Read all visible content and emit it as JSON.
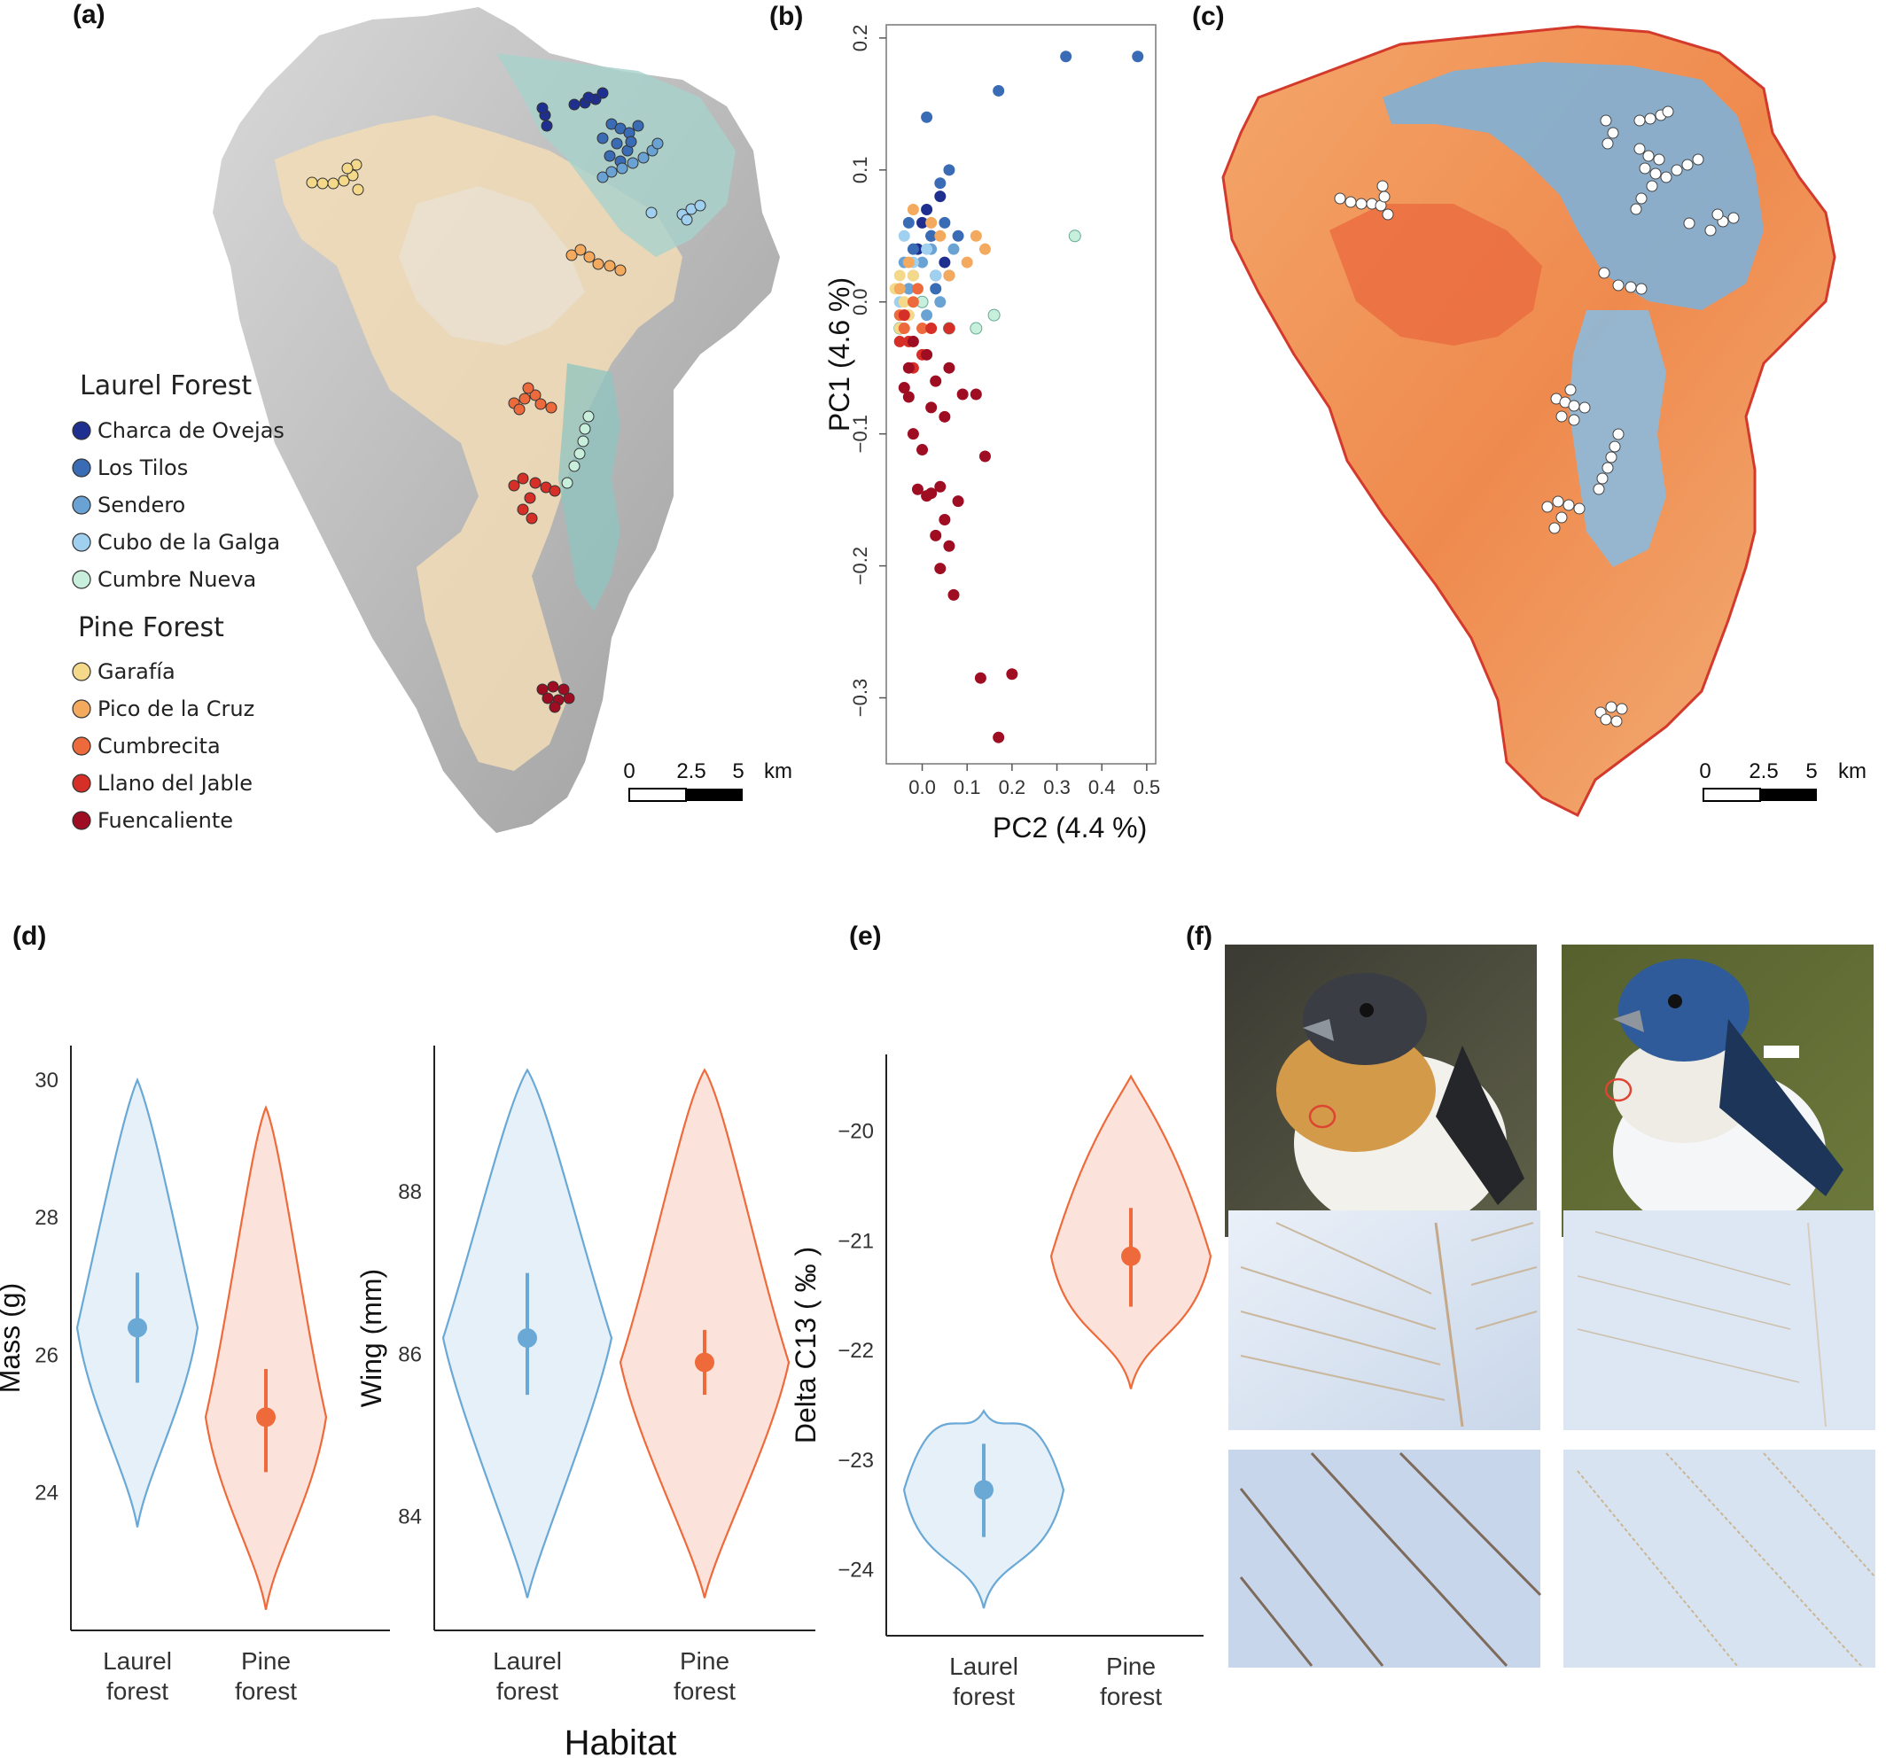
{
  "panels": {
    "a": "(a)",
    "b": "(b)",
    "c": "(c)",
    "d": "(d)",
    "e": "(e)",
    "f": "(f)"
  },
  "legend": {
    "laurel_title": "Laurel Forest",
    "pine_title": "Pine Forest",
    "laurel_items": [
      {
        "label": "Charca de Ovejas",
        "color": "#1f2f8f"
      },
      {
        "label": "Los Tilos",
        "color": "#3a6bb5"
      },
      {
        "label": "Sendero",
        "color": "#6aa3d3"
      },
      {
        "label": "Cubo de la Galga",
        "color": "#9fd0f0"
      },
      {
        "label": "Cumbre Nueva",
        "color": "#c8eedc"
      }
    ],
    "pine_items": [
      {
        "label": "Garafía",
        "color": "#f5d98a"
      },
      {
        "label": "Pico de la Cruz",
        "color": "#f3a95e"
      },
      {
        "label": "Cumbrecita",
        "color": "#ec6a3c"
      },
      {
        "label": "Llano del Jable",
        "color": "#d52f27"
      },
      {
        "label": "Fuencaliente",
        "color": "#9e0d22"
      }
    ]
  },
  "scale_bar": {
    "t0": "0",
    "t1": "2.5",
    "t2": "5",
    "unit": "km"
  },
  "colors": {
    "laurel": "#6aa8d6",
    "laurel_fill": "#e5f0f9",
    "pine": "#ef6a3a",
    "pine_fill": "#fbe3dc",
    "map_grey": "#bdbdbd",
    "laurel_zone": "#a8d2cc",
    "pine_zone": "#f1dcb6"
  },
  "chart_data": [
    {
      "type": "scatter",
      "id": "b",
      "xlabel": "PC2 (4.4 %)",
      "ylabel": "PC1 (4.6 %)",
      "xlim": [
        -0.08,
        0.52
      ],
      "ylim": [
        -0.35,
        0.21
      ],
      "xticks": [
        "0.0",
        "0.1",
        "0.2",
        "0.3",
        "0.4",
        "0.5"
      ],
      "yticks": [
        "0.2",
        "0.1",
        "0.0",
        "−0.1",
        "−0.2",
        "−0.3"
      ],
      "series": [
        {
          "name": "Charca de Ovejas",
          "color": "#1f2f8f",
          "points": [
            [
              0.0,
              0.06
            ],
            [
              0.02,
              0.05
            ],
            [
              0.05,
              0.03
            ],
            [
              -0.01,
              0.04
            ],
            [
              0.03,
              0.02
            ],
            [
              0.01,
              0.07
            ],
            [
              0.04,
              0.08
            ]
          ]
        },
        {
          "name": "Los Tilos",
          "color": "#3a6bb5",
          "points": [
            [
              0.48,
              0.186
            ],
            [
              0.32,
              0.186
            ],
            [
              0.17,
              0.16
            ],
            [
              0.01,
              0.14
            ],
            [
              0.06,
              0.1
            ],
            [
              0.04,
              0.09
            ],
            [
              0.05,
              0.06
            ],
            [
              0.08,
              0.05
            ],
            [
              0.02,
              0.05
            ],
            [
              -0.03,
              0.06
            ],
            [
              -0.02,
              0.04
            ],
            [
              0.06,
              0.02
            ],
            [
              0.03,
              0.01
            ],
            [
              0.0,
              0.0
            ]
          ]
        },
        {
          "name": "Sendero",
          "color": "#6aa3d3",
          "points": [
            [
              0.0,
              0.03
            ],
            [
              -0.02,
              0.02
            ],
            [
              0.02,
              0.04
            ],
            [
              0.04,
              0.0
            ],
            [
              -0.04,
              0.03
            ],
            [
              0.07,
              0.04
            ],
            [
              0.01,
              -0.01
            ],
            [
              -0.03,
              0.01
            ]
          ]
        },
        {
          "name": "Cubo de la Galga",
          "color": "#9fd0f0",
          "points": [
            [
              -0.04,
              0.05
            ],
            [
              -0.02,
              0.03
            ],
            [
              0.03,
              0.02
            ],
            [
              -0.05,
              0.0
            ],
            [
              0.01,
              0.04
            ],
            [
              -0.03,
              -0.01
            ]
          ]
        },
        {
          "name": "Cumbre Nueva",
          "color": "#c8eedc",
          "points": [
            [
              0.34,
              0.05
            ],
            [
              0.16,
              -0.01
            ],
            [
              0.12,
              -0.02
            ],
            [
              0.06,
              -0.02
            ],
            [
              0.0,
              0.0
            ],
            [
              -0.05,
              -0.02
            ]
          ]
        },
        {
          "name": "Garafía",
          "color": "#f5d98a",
          "points": [
            [
              -0.06,
              0.01
            ],
            [
              -0.04,
              0.0
            ],
            [
              -0.05,
              0.02
            ],
            [
              -0.03,
              -0.01
            ],
            [
              -0.05,
              -0.02
            ],
            [
              -0.02,
              0.02
            ]
          ]
        },
        {
          "name": "Pico de la Cruz",
          "color": "#f3a95e",
          "points": [
            [
              0.12,
              0.05
            ],
            [
              0.14,
              0.04
            ],
            [
              0.1,
              0.03
            ],
            [
              0.06,
              0.02
            ],
            [
              -0.02,
              0.07
            ],
            [
              0.02,
              0.06
            ],
            [
              -0.05,
              0.01
            ],
            [
              -0.03,
              0.03
            ],
            [
              0.04,
              0.05
            ]
          ]
        },
        {
          "name": "Cumbrecita",
          "color": "#ec6a3c",
          "points": [
            [
              -0.02,
              0.0
            ],
            [
              -0.05,
              -0.01
            ],
            [
              0.0,
              -0.02
            ],
            [
              -0.04,
              -0.02
            ],
            [
              -0.01,
              0.01
            ]
          ]
        },
        {
          "name": "Llano del Jable",
          "color": "#d52f27",
          "points": [
            [
              -0.03,
              -0.03
            ],
            [
              0.0,
              -0.04
            ],
            [
              -0.05,
              -0.03
            ],
            [
              0.02,
              -0.02
            ],
            [
              -0.02,
              -0.05
            ],
            [
              0.06,
              -0.02
            ],
            [
              -0.04,
              -0.01
            ]
          ]
        },
        {
          "name": "Fuencaliente",
          "color": "#9e0d22",
          "points": [
            [
              0.17,
              -0.33
            ],
            [
              0.13,
              -0.285
            ],
            [
              0.2,
              -0.282
            ],
            [
              0.07,
              -0.222
            ],
            [
              0.04,
              -0.202
            ],
            [
              0.06,
              -0.185
            ],
            [
              0.03,
              -0.177
            ],
            [
              0.05,
              -0.165
            ],
            [
              0.08,
              -0.151
            ],
            [
              0.02,
              -0.145
            ],
            [
              -0.01,
              -0.142
            ],
            [
              0.01,
              -0.147
            ],
            [
              0.04,
              -0.14
            ],
            [
              0.14,
              -0.117
            ],
            [
              0.0,
              -0.112
            ],
            [
              0.12,
              -0.07
            ],
            [
              0.05,
              -0.087
            ],
            [
              0.09,
              -0.07
            ],
            [
              0.02,
              -0.08
            ],
            [
              -0.02,
              -0.1
            ],
            [
              -0.04,
              -0.065
            ],
            [
              -0.03,
              -0.072
            ],
            [
              0.01,
              -0.04
            ],
            [
              -0.02,
              -0.03
            ],
            [
              0.03,
              -0.06
            ],
            [
              0.06,
              -0.05
            ],
            [
              -0.03,
              -0.05
            ]
          ]
        }
      ]
    },
    {
      "type": "violin",
      "id": "d-mass",
      "ylabel": "Mass (g)",
      "ylim": [
        22.0,
        30.5
      ],
      "yticks": [
        24,
        26,
        28,
        30
      ],
      "categories": [
        "Laurel\nforest",
        "Pine\nforest"
      ],
      "groups": [
        {
          "name": "Laurel forest",
          "color": "#6aa8d6",
          "min": 23.5,
          "max": 30.0,
          "mean": 26.4,
          "lo": 25.6,
          "hi": 27.2
        },
        {
          "name": "Pine forest",
          "color": "#ef6a3a",
          "min": 22.3,
          "max": 29.6,
          "mean": 25.1,
          "lo": 24.3,
          "hi": 25.8
        }
      ]
    },
    {
      "type": "violin",
      "id": "d-wing",
      "ylabel": "Wing (mm)",
      "ylim": [
        82.6,
        89.8
      ],
      "yticks": [
        84,
        86,
        88
      ],
      "categories": [
        "Laurel\nforest",
        "Pine\nforest"
      ],
      "groups": [
        {
          "name": "Laurel forest",
          "color": "#6aa8d6",
          "min": 83.0,
          "max": 89.5,
          "mean": 86.2,
          "lo": 85.5,
          "hi": 87.0
        },
        {
          "name": "Pine forest",
          "color": "#ef6a3a",
          "min": 83.0,
          "max": 89.5,
          "mean": 85.9,
          "lo": 85.5,
          "hi": 86.3
        }
      ]
    },
    {
      "type": "violin",
      "id": "e",
      "ylabel": "Delta C13 ( ‰ )",
      "ylim": [
        -24.6,
        -19.3
      ],
      "yticks": [
        -20,
        -21,
        -22,
        -23,
        -24
      ],
      "categories": [
        "Laurel\nforest",
        "Pine\nforest"
      ],
      "groups": [
        {
          "name": "Laurel forest",
          "color": "#6aa8d6",
          "min": -24.35,
          "max": -22.55,
          "mean": -23.27,
          "lo": -23.7,
          "hi": -22.85
        },
        {
          "name": "Pine forest",
          "color": "#ef6a3a",
          "min": -22.35,
          "max": -19.5,
          "mean": -21.14,
          "lo": -21.6,
          "hi": -20.7
        }
      ]
    }
  ],
  "habitat_label": "Habitat",
  "tick_text": {
    "laurel1": "Laurel",
    "laurel2": "forest",
    "pine1": "Pine",
    "pine2": "forest"
  }
}
